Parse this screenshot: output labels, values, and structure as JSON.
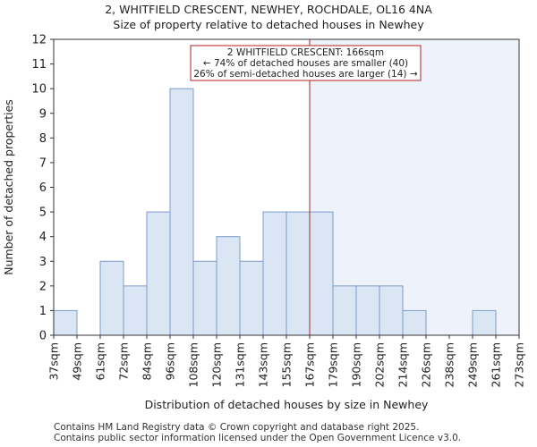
{
  "title_line1": "2, WHITFIELD CRESCENT, NEWHEY, ROCHDALE, OL16 4NA",
  "title_line2": "Size of property relative to detached houses in Newhey",
  "footer_line1": "Contains HM Land Registry data © Crown copyright and database right 2025.",
  "footer_line2": "Contains public sector information licensed under the Open Government Licence v3.0.",
  "colors": {
    "bar_fill": "#dbe6f5",
    "bar_edge": "#7d9cc8",
    "marker_line": "#b22222",
    "highlight_fill": "#eef2fb",
    "annotation_border": "#b22222"
  },
  "chart_data": {
    "type": "bar",
    "xlabel": "Distribution of detached houses by size in Newhey",
    "ylabel": "Number of detached properties",
    "ylim": [
      0,
      12
    ],
    "yticks": [
      0,
      1,
      2,
      3,
      4,
      5,
      6,
      7,
      8,
      9,
      10,
      11,
      12
    ],
    "bin_edges": [
      "37sqm",
      "49sqm",
      "61sqm",
      "72sqm",
      "84sqm",
      "96sqm",
      "108sqm",
      "120sqm",
      "131sqm",
      "143sqm",
      "155sqm",
      "167sqm",
      "179sqm",
      "190sqm",
      "202sqm",
      "214sqm",
      "226sqm",
      "238sqm",
      "249sqm",
      "261sqm",
      "273sqm"
    ],
    "values": [
      1,
      0,
      3,
      2,
      5,
      10,
      3,
      4,
      3,
      5,
      5,
      5,
      2,
      2,
      2,
      1,
      0,
      0,
      1,
      0
    ],
    "marker_bin_position": 11.0,
    "annotation": {
      "line1": "2 WHITFIELD CRESCENT: 166sqm",
      "line2": "← 74% of detached houses are smaller (40)",
      "line3": "26% of semi-detached houses are larger (14) →"
    },
    "grid": false
  }
}
